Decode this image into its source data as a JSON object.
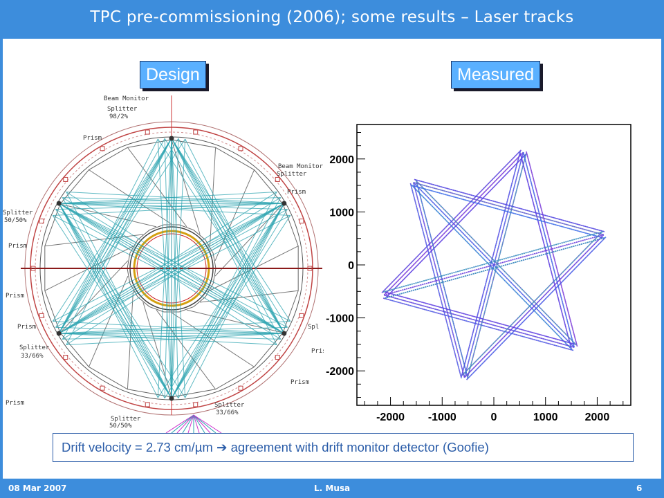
{
  "slide": {
    "title": "TPC pre-commissioning (2006); some results – Laser tracks",
    "footer": {
      "date": "08 Mar  2007",
      "author": "L. Musa",
      "page": "6"
    }
  },
  "design_panel": {
    "label": "Design",
    "annotations": [
      "Beam Monitor",
      "Splitter",
      "98/2%",
      "Prism",
      "Beam Monitor",
      "Splitter",
      "Prism",
      "Splitter",
      "50/50%",
      "Prism",
      "Prism",
      "Prism",
      "Spl",
      "Prism",
      "Splitter",
      "33/66%",
      "Prism",
      "Prism",
      "Splitter",
      "33/66%",
      "Splitter",
      "50/50%"
    ]
  },
  "measured_panel": {
    "label": "Measured",
    "chart_data": {
      "type": "scatter",
      "x_ticks": [
        "-2000",
        "-1000",
        "0",
        "1000",
        "2000"
      ],
      "y_ticks": [
        "2000",
        "1000",
        "0",
        "-1000",
        "-2000"
      ],
      "xlim": [
        -2650,
        2650
      ],
      "ylim": [
        -2650,
        2650
      ],
      "grid": false,
      "legend": false
    }
  },
  "note": {
    "text": "Drift velocity = 2.73 cm/µm  ➔ agreement with drift monitor detector (Goofie)"
  },
  "colors": {
    "bar": "#3d8ddc",
    "label_bg": "#5ab0ff",
    "note_text": "#2a5ca8",
    "rod": "#cc2222",
    "ray": "#2ba3b0",
    "track": "#5a3ae0"
  }
}
